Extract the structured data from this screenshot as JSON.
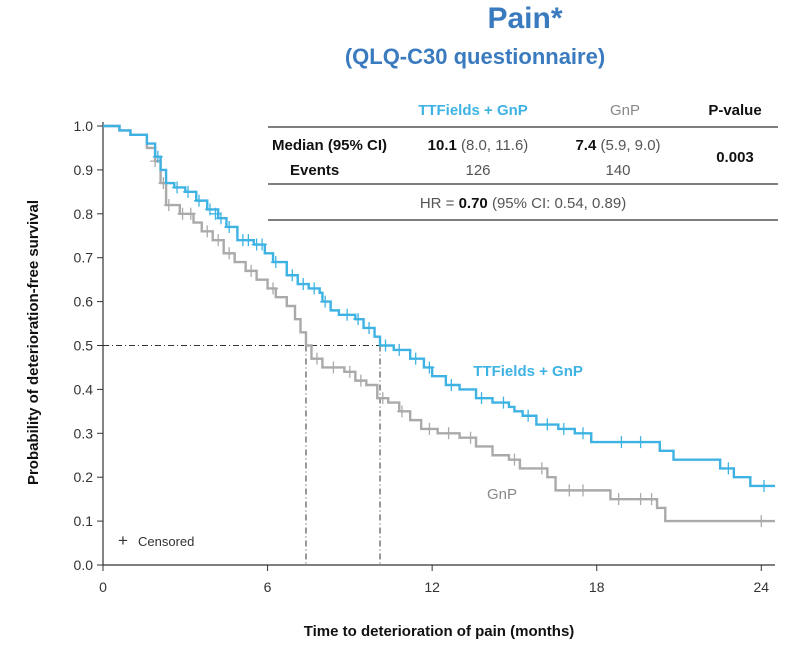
{
  "chart_data": {
    "type": "line",
    "title": "Pain*",
    "subtitle": "(QLQ-C30 questionnaire)",
    "xlabel": "Time to deterioration of pain (months)",
    "ylabel": "Probability of deterioration-free survival",
    "xlim": [
      0,
      24.5
    ],
    "ylim": [
      0,
      1.0
    ],
    "xticks": [
      0,
      6,
      12,
      18,
      24
    ],
    "yticks": [
      0.0,
      0.1,
      0.2,
      0.3,
      0.4,
      0.5,
      0.6,
      0.7,
      0.8,
      0.9,
      1.0
    ],
    "median_line_y": 0.5,
    "series": [
      {
        "name": "TTFields + GnP",
        "color": "#3eb3e3",
        "steps": [
          [
            0,
            1.0
          ],
          [
            0.6,
            0.99
          ],
          [
            1.0,
            0.98
          ],
          [
            1.6,
            0.96
          ],
          [
            1.9,
            0.93
          ],
          [
            2.1,
            0.9
          ],
          [
            2.3,
            0.87
          ],
          [
            2.6,
            0.86
          ],
          [
            3.0,
            0.85
          ],
          [
            3.4,
            0.83
          ],
          [
            3.8,
            0.81
          ],
          [
            4.2,
            0.79
          ],
          [
            4.5,
            0.77
          ],
          [
            4.9,
            0.74
          ],
          [
            5.5,
            0.73
          ],
          [
            5.9,
            0.71
          ],
          [
            6.2,
            0.69
          ],
          [
            6.7,
            0.66
          ],
          [
            7.1,
            0.64
          ],
          [
            7.5,
            0.63
          ],
          [
            7.9,
            0.62
          ],
          [
            8.0,
            0.6
          ],
          [
            8.3,
            0.58
          ],
          [
            8.6,
            0.57
          ],
          [
            9.2,
            0.56
          ],
          [
            9.5,
            0.54
          ],
          [
            9.9,
            0.52
          ],
          [
            10.1,
            0.5
          ],
          [
            10.6,
            0.49
          ],
          [
            11.2,
            0.47
          ],
          [
            11.7,
            0.45
          ],
          [
            12.0,
            0.43
          ],
          [
            12.5,
            0.41
          ],
          [
            13.0,
            0.4
          ],
          [
            13.6,
            0.38
          ],
          [
            14.2,
            0.37
          ],
          [
            14.8,
            0.36
          ],
          [
            15.0,
            0.35
          ],
          [
            15.3,
            0.34
          ],
          [
            15.8,
            0.32
          ],
          [
            16.6,
            0.31
          ],
          [
            17.2,
            0.3
          ],
          [
            17.8,
            0.28
          ],
          [
            18.5,
            0.28
          ],
          [
            19.2,
            0.28
          ],
          [
            20.3,
            0.26
          ],
          [
            20.8,
            0.24
          ],
          [
            22.5,
            0.22
          ],
          [
            23.0,
            0.2
          ],
          [
            23.6,
            0.18
          ],
          [
            24.5,
            0.18
          ]
        ],
        "censored": [
          [
            2.0,
            0.93
          ],
          [
            2.7,
            0.86
          ],
          [
            3.1,
            0.85
          ],
          [
            3.5,
            0.83
          ],
          [
            3.9,
            0.81
          ],
          [
            4.1,
            0.8
          ],
          [
            4.3,
            0.79
          ],
          [
            4.6,
            0.77
          ],
          [
            5.1,
            0.74
          ],
          [
            5.3,
            0.74
          ],
          [
            5.6,
            0.73
          ],
          [
            5.8,
            0.73
          ],
          [
            6.3,
            0.69
          ],
          [
            6.9,
            0.66
          ],
          [
            7.3,
            0.64
          ],
          [
            7.7,
            0.63
          ],
          [
            8.1,
            0.6
          ],
          [
            8.9,
            0.57
          ],
          [
            9.3,
            0.56
          ],
          [
            9.7,
            0.54
          ],
          [
            10.3,
            0.5
          ],
          [
            10.8,
            0.49
          ],
          [
            11.4,
            0.47
          ],
          [
            11.9,
            0.45
          ],
          [
            12.7,
            0.41
          ],
          [
            13.8,
            0.38
          ],
          [
            14.6,
            0.37
          ],
          [
            15.5,
            0.34
          ],
          [
            16.2,
            0.32
          ],
          [
            16.8,
            0.31
          ],
          [
            17.5,
            0.3
          ],
          [
            18.9,
            0.28
          ],
          [
            19.6,
            0.28
          ],
          [
            22.8,
            0.22
          ],
          [
            24.1,
            0.18
          ]
        ],
        "label_pos": [
          13.5,
          0.43
        ]
      },
      {
        "name": "GnP",
        "color": "#aaaaaa",
        "steps": [
          [
            0,
            1.0
          ],
          [
            0.6,
            0.99
          ],
          [
            1.0,
            0.98
          ],
          [
            1.6,
            0.95
          ],
          [
            1.9,
            0.92
          ],
          [
            2.1,
            0.87
          ],
          [
            2.3,
            0.82
          ],
          [
            2.8,
            0.8
          ],
          [
            3.3,
            0.78
          ],
          [
            3.6,
            0.76
          ],
          [
            4.0,
            0.74
          ],
          [
            4.4,
            0.71
          ],
          [
            4.8,
            0.69
          ],
          [
            5.2,
            0.67
          ],
          [
            5.6,
            0.65
          ],
          [
            6.0,
            0.63
          ],
          [
            6.3,
            0.61
          ],
          [
            6.7,
            0.59
          ],
          [
            7.0,
            0.56
          ],
          [
            7.2,
            0.53
          ],
          [
            7.4,
            0.5
          ],
          [
            7.6,
            0.47
          ],
          [
            8.0,
            0.45
          ],
          [
            8.8,
            0.44
          ],
          [
            9.2,
            0.42
          ],
          [
            9.6,
            0.41
          ],
          [
            10.0,
            0.38
          ],
          [
            10.4,
            0.37
          ],
          [
            10.8,
            0.35
          ],
          [
            11.2,
            0.33
          ],
          [
            11.6,
            0.31
          ],
          [
            12.2,
            0.3
          ],
          [
            13.0,
            0.29
          ],
          [
            13.6,
            0.27
          ],
          [
            14.2,
            0.25
          ],
          [
            14.8,
            0.24
          ],
          [
            15.2,
            0.22
          ],
          [
            16.2,
            0.2
          ],
          [
            16.5,
            0.17
          ],
          [
            18.5,
            0.15
          ],
          [
            20.2,
            0.13
          ],
          [
            20.5,
            0.1
          ],
          [
            24.5,
            0.1
          ]
        ],
        "censored": [
          [
            1.9,
            0.92
          ],
          [
            2.2,
            0.87
          ],
          [
            2.4,
            0.82
          ],
          [
            2.9,
            0.8
          ],
          [
            3.2,
            0.8
          ],
          [
            3.8,
            0.76
          ],
          [
            4.2,
            0.74
          ],
          [
            4.6,
            0.71
          ],
          [
            5.4,
            0.67
          ],
          [
            6.2,
            0.63
          ],
          [
            7.8,
            0.47
          ],
          [
            8.4,
            0.45
          ],
          [
            9.0,
            0.44
          ],
          [
            9.4,
            0.42
          ],
          [
            10.2,
            0.38
          ],
          [
            10.9,
            0.35
          ],
          [
            11.9,
            0.31
          ],
          [
            12.6,
            0.3
          ],
          [
            13.4,
            0.29
          ],
          [
            15.0,
            0.24
          ],
          [
            16.0,
            0.22
          ],
          [
            17.0,
            0.17
          ],
          [
            17.5,
            0.17
          ],
          [
            18.8,
            0.15
          ],
          [
            19.6,
            0.15
          ],
          [
            20.0,
            0.15
          ],
          [
            24.0,
            0.1
          ]
        ],
        "label_pos": [
          14.0,
          0.15
        ]
      }
    ],
    "medians": [
      {
        "series": "TTFields + GnP",
        "x": 10.1
      },
      {
        "series": "GnP",
        "x": 7.4
      }
    ],
    "legend": {
      "marker": "+",
      "label": "Censored",
      "placement": "bottom-left"
    }
  },
  "stats_table": {
    "col_headers": [
      "TTFields + GnP",
      "GnP",
      "P-value"
    ],
    "rows": [
      {
        "label": "Median (95% CI)",
        "ttf_bold": "10.1",
        "ttf_rest": " (8.0, 11.6)",
        "gnp_bold": "7.4",
        "gnp_rest": " (5.9, 9.0)"
      },
      {
        "label": "Events",
        "ttf": "126",
        "gnp": "140"
      }
    ],
    "p_value": "0.003",
    "hr_prefix": "HR = ",
    "hr_value": "0.70",
    "hr_ci": " (95% CI: 0.54, 0.89)"
  }
}
